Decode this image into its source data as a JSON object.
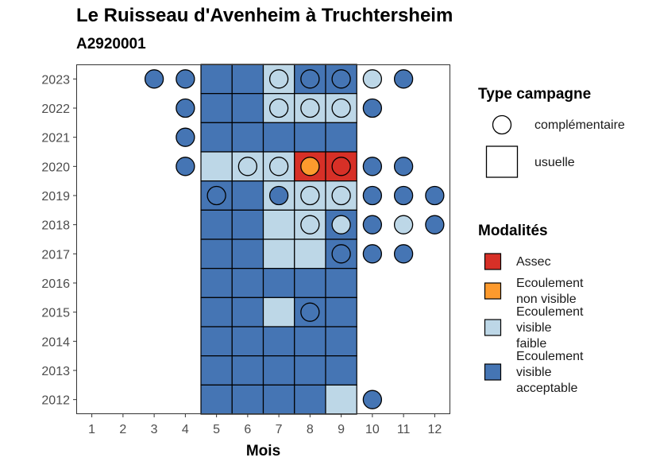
{
  "chart_data": {
    "type": "heatmap",
    "title": "Le Ruisseau d'Avenheim à Truchtersheim",
    "subtitle": "A2920001",
    "xlabel": "Mois",
    "ylabel": "",
    "x_ticks": [
      "1",
      "2",
      "3",
      "4",
      "5",
      "6",
      "7",
      "8",
      "9",
      "10",
      "11",
      "12"
    ],
    "y_ticks": [
      "2012",
      "2013",
      "2014",
      "2015",
      "2016",
      "2017",
      "2018",
      "2019",
      "2020",
      "2021",
      "2022",
      "2023"
    ],
    "grid": false,
    "legend_position": "right",
    "legend_campaign": {
      "title": "Type campagne",
      "items": [
        {
          "key": "complementaire",
          "label": "complémentaire",
          "shape": "circle"
        },
        {
          "key": "usuelle",
          "label": "usuelle",
          "shape": "square"
        }
      ]
    },
    "legend_modalites": {
      "title": "Modalités",
      "items": [
        {
          "key": "assec",
          "lines": [
            "Assec"
          ],
          "color": "#d73027"
        },
        {
          "key": "nonvisible",
          "lines": [
            "Ecoulement",
            "non visible"
          ],
          "color": "#fd9a2d"
        },
        {
          "key": "faible",
          "lines": [
            "Ecoulement",
            "visible",
            "faible"
          ],
          "color": "#bdd7e7"
        },
        {
          "key": "acceptable",
          "lines": [
            "Ecoulement",
            "visible",
            "acceptable"
          ],
          "color": "#4575b4"
        }
      ]
    },
    "usuelle": [
      {
        "year": 2023,
        "month": 5,
        "modalite": "acceptable"
      },
      {
        "year": 2023,
        "month": 6,
        "modalite": "acceptable"
      },
      {
        "year": 2023,
        "month": 7,
        "modalite": "faible"
      },
      {
        "year": 2023,
        "month": 8,
        "modalite": "acceptable"
      },
      {
        "year": 2023,
        "month": 9,
        "modalite": "acceptable"
      },
      {
        "year": 2022,
        "month": 5,
        "modalite": "acceptable"
      },
      {
        "year": 2022,
        "month": 6,
        "modalite": "acceptable"
      },
      {
        "year": 2022,
        "month": 7,
        "modalite": "faible"
      },
      {
        "year": 2022,
        "month": 8,
        "modalite": "faible"
      },
      {
        "year": 2022,
        "month": 9,
        "modalite": "faible"
      },
      {
        "year": 2021,
        "month": 5,
        "modalite": "acceptable"
      },
      {
        "year": 2021,
        "month": 6,
        "modalite": "acceptable"
      },
      {
        "year": 2021,
        "month": 7,
        "modalite": "acceptable"
      },
      {
        "year": 2021,
        "month": 8,
        "modalite": "acceptable"
      },
      {
        "year": 2021,
        "month": 9,
        "modalite": "acceptable"
      },
      {
        "year": 2020,
        "month": 5,
        "modalite": "faible"
      },
      {
        "year": 2020,
        "month": 6,
        "modalite": "faible"
      },
      {
        "year": 2020,
        "month": 7,
        "modalite": "faible"
      },
      {
        "year": 2020,
        "month": 8,
        "modalite": "assec"
      },
      {
        "year": 2020,
        "month": 9,
        "modalite": "assec"
      },
      {
        "year": 2019,
        "month": 5,
        "modalite": "acceptable"
      },
      {
        "year": 2019,
        "month": 6,
        "modalite": "acceptable"
      },
      {
        "year": 2019,
        "month": 7,
        "modalite": "faible"
      },
      {
        "year": 2019,
        "month": 8,
        "modalite": "faible"
      },
      {
        "year": 2019,
        "month": 9,
        "modalite": "faible"
      },
      {
        "year": 2018,
        "month": 5,
        "modalite": "acceptable"
      },
      {
        "year": 2018,
        "month": 6,
        "modalite": "acceptable"
      },
      {
        "year": 2018,
        "month": 7,
        "modalite": "faible"
      },
      {
        "year": 2018,
        "month": 8,
        "modalite": "faible"
      },
      {
        "year": 2018,
        "month": 9,
        "modalite": "acceptable"
      },
      {
        "year": 2017,
        "month": 5,
        "modalite": "acceptable"
      },
      {
        "year": 2017,
        "month": 6,
        "modalite": "acceptable"
      },
      {
        "year": 2017,
        "month": 7,
        "modalite": "faible"
      },
      {
        "year": 2017,
        "month": 8,
        "modalite": "faible"
      },
      {
        "year": 2017,
        "month": 9,
        "modalite": "acceptable"
      },
      {
        "year": 2016,
        "month": 5,
        "modalite": "acceptable"
      },
      {
        "year": 2016,
        "month": 6,
        "modalite": "acceptable"
      },
      {
        "year": 2016,
        "month": 7,
        "modalite": "acceptable"
      },
      {
        "year": 2016,
        "month": 8,
        "modalite": "acceptable"
      },
      {
        "year": 2016,
        "month": 9,
        "modalite": "acceptable"
      },
      {
        "year": 2015,
        "month": 5,
        "modalite": "acceptable"
      },
      {
        "year": 2015,
        "month": 6,
        "modalite": "acceptable"
      },
      {
        "year": 2015,
        "month": 7,
        "modalite": "faible"
      },
      {
        "year": 2015,
        "month": 8,
        "modalite": "acceptable"
      },
      {
        "year": 2015,
        "month": 9,
        "modalite": "acceptable"
      },
      {
        "year": 2014,
        "month": 5,
        "modalite": "acceptable"
      },
      {
        "year": 2014,
        "month": 6,
        "modalite": "acceptable"
      },
      {
        "year": 2014,
        "month": 7,
        "modalite": "acceptable"
      },
      {
        "year": 2014,
        "month": 8,
        "modalite": "acceptable"
      },
      {
        "year": 2014,
        "month": 9,
        "modalite": "acceptable"
      },
      {
        "year": 2013,
        "month": 5,
        "modalite": "acceptable"
      },
      {
        "year": 2013,
        "month": 6,
        "modalite": "acceptable"
      },
      {
        "year": 2013,
        "month": 7,
        "modalite": "acceptable"
      },
      {
        "year": 2013,
        "month": 8,
        "modalite": "acceptable"
      },
      {
        "year": 2013,
        "month": 9,
        "modalite": "acceptable"
      },
      {
        "year": 2012,
        "month": 5,
        "modalite": "acceptable"
      },
      {
        "year": 2012,
        "month": 6,
        "modalite": "acceptable"
      },
      {
        "year": 2012,
        "month": 7,
        "modalite": "acceptable"
      },
      {
        "year": 2012,
        "month": 8,
        "modalite": "acceptable"
      },
      {
        "year": 2012,
        "month": 9,
        "modalite": "faible"
      }
    ],
    "complementaire": [
      {
        "year": 2023,
        "month": 3,
        "modalite": "acceptable"
      },
      {
        "year": 2023,
        "month": 4,
        "modalite": "acceptable"
      },
      {
        "year": 2023,
        "month": 7,
        "modalite": "faible"
      },
      {
        "year": 2023,
        "month": 8,
        "modalite": "acceptable"
      },
      {
        "year": 2023,
        "month": 9,
        "modalite": "acceptable"
      },
      {
        "year": 2023,
        "month": 10,
        "modalite": "faible"
      },
      {
        "year": 2023,
        "month": 11,
        "modalite": "acceptable"
      },
      {
        "year": 2022,
        "month": 4,
        "modalite": "acceptable"
      },
      {
        "year": 2022,
        "month": 7,
        "modalite": "faible"
      },
      {
        "year": 2022,
        "month": 8,
        "modalite": "faible"
      },
      {
        "year": 2022,
        "month": 9,
        "modalite": "faible"
      },
      {
        "year": 2022,
        "month": 10,
        "modalite": "acceptable"
      },
      {
        "year": 2021,
        "month": 4,
        "modalite": "acceptable"
      },
      {
        "year": 2020,
        "month": 4,
        "modalite": "acceptable"
      },
      {
        "year": 2020,
        "month": 6,
        "modalite": "faible"
      },
      {
        "year": 2020,
        "month": 7,
        "modalite": "faible"
      },
      {
        "year": 2020,
        "month": 8,
        "modalite": "nonvisible"
      },
      {
        "year": 2020,
        "month": 9,
        "modalite": "assec"
      },
      {
        "year": 2020,
        "month": 10,
        "modalite": "acceptable"
      },
      {
        "year": 2020,
        "month": 11,
        "modalite": "acceptable"
      },
      {
        "year": 2019,
        "month": 5,
        "modalite": "acceptable"
      },
      {
        "year": 2019,
        "month": 7,
        "modalite": "acceptable"
      },
      {
        "year": 2019,
        "month": 8,
        "modalite": "faible"
      },
      {
        "year": 2019,
        "month": 9,
        "modalite": "faible"
      },
      {
        "year": 2019,
        "month": 10,
        "modalite": "acceptable"
      },
      {
        "year": 2019,
        "month": 11,
        "modalite": "acceptable"
      },
      {
        "year": 2019,
        "month": 12,
        "modalite": "acceptable"
      },
      {
        "year": 2018,
        "month": 8,
        "modalite": "faible"
      },
      {
        "year": 2018,
        "month": 9,
        "modalite": "faible"
      },
      {
        "year": 2018,
        "month": 10,
        "modalite": "acceptable"
      },
      {
        "year": 2018,
        "month": 11,
        "modalite": "faible"
      },
      {
        "year": 2018,
        "month": 12,
        "modalite": "acceptable"
      },
      {
        "year": 2017,
        "month": 9,
        "modalite": "acceptable"
      },
      {
        "year": 2017,
        "month": 10,
        "modalite": "acceptable"
      },
      {
        "year": 2017,
        "month": 11,
        "modalite": "acceptable"
      },
      {
        "year": 2015,
        "month": 8,
        "modalite": "acceptable"
      },
      {
        "year": 2012,
        "month": 10,
        "modalite": "acceptable"
      }
    ]
  }
}
